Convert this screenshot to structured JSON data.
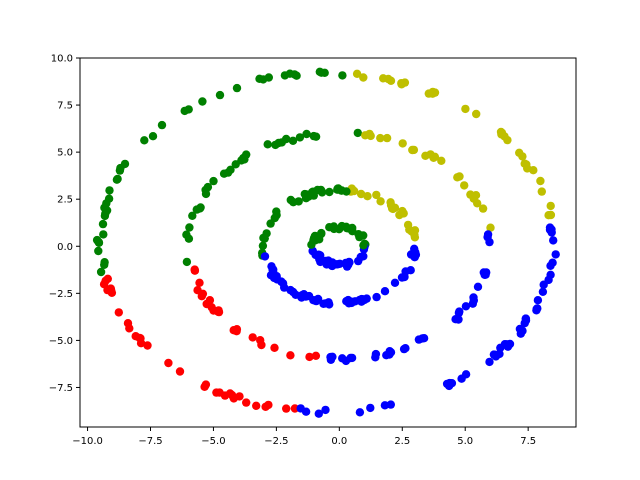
{
  "chart_data": {
    "type": "scatter",
    "title": "",
    "xlabel": "",
    "ylabel": "",
    "xlim": [
      -10.3,
      9.4
    ],
    "ylim": [
      -9.6,
      10.0
    ],
    "grid": false,
    "legend": "none",
    "xticks": [
      -10.0,
      -7.5,
      -5.0,
      -2.5,
      0.0,
      2.5,
      5.0,
      7.5
    ],
    "xtick_labels": [
      "−10.0",
      "−7.5",
      "−5.0",
      "−2.5",
      "0.0",
      "2.5",
      "5.0",
      "7.5"
    ],
    "yticks": [
      -7.5,
      -5.0,
      -2.5,
      0.0,
      2.5,
      5.0,
      7.5,
      10.0
    ],
    "ytick_labels": [
      "−7.5",
      "−5.0",
      "−2.5",
      "0.0",
      "2.5",
      "5.0",
      "7.5",
      "10.0"
    ],
    "rings": [
      {
        "center": [
          0.0,
          0.0
        ],
        "radius": 1.0,
        "count": 60
      },
      {
        "center": [
          0.0,
          0.0
        ],
        "radius": 3.0,
        "count": 110
      },
      {
        "center": [
          0.0,
          0.0
        ],
        "radius": 6.0,
        "count": 110
      },
      {
        "center": [
          -0.5,
          0.2
        ],
        "radius": 9.0,
        "count": 150
      }
    ],
    "cluster_colors": {
      "green": "#008000",
      "yellow": "#bfbf00",
      "red": "#ff0000",
      "blue": "#0000ff"
    }
  }
}
